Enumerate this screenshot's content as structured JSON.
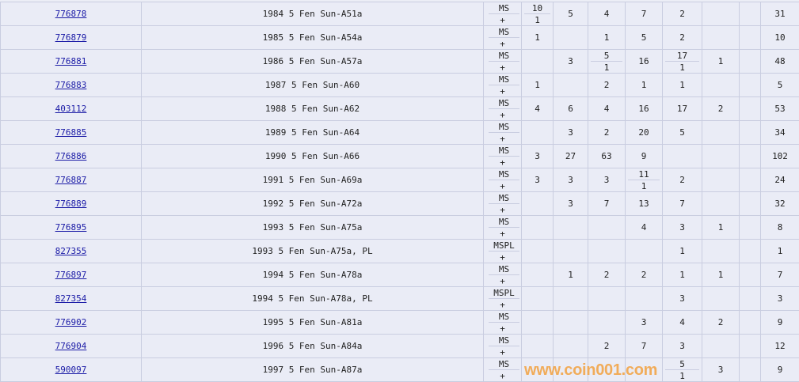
{
  "rows": [
    {
      "id": "776878",
      "desc": "1984 5 Fen Sun-A51a",
      "grade": [
        "MS",
        "+"
      ],
      "cells": [
        [
          "10",
          "1"
        ],
        "5",
        "4",
        "7",
        "2",
        "",
        "",
        "31"
      ]
    },
    {
      "id": "776879",
      "desc": "1985 5 Fen Sun-A54a",
      "grade": [
        "MS",
        "+"
      ],
      "cells": [
        "1",
        "",
        "1",
        "5",
        "2",
        "",
        "",
        "10"
      ]
    },
    {
      "id": "776881",
      "desc": "1986 5 Fen Sun-A57a",
      "grade": [
        "MS",
        "+"
      ],
      "cells": [
        "",
        "3",
        [
          "5",
          "1"
        ],
        "16",
        [
          "17",
          "1"
        ],
        "1",
        "",
        "48"
      ]
    },
    {
      "id": "776883",
      "desc": "1987 5 Fen Sun-A60",
      "grade": [
        "MS",
        "+"
      ],
      "cells": [
        "1",
        "",
        "2",
        "1",
        "1",
        "",
        "",
        "5"
      ]
    },
    {
      "id": "403112",
      "desc": "1988 5 Fen Sun-A62",
      "grade": [
        "MS",
        "+"
      ],
      "cells": [
        "4",
        "6",
        "4",
        "16",
        "17",
        "2",
        "",
        "53"
      ]
    },
    {
      "id": "776885",
      "desc": "1989 5 Fen Sun-A64",
      "grade": [
        "MS",
        "+"
      ],
      "cells": [
        "",
        "3",
        "2",
        "20",
        "5",
        "",
        "",
        "34"
      ]
    },
    {
      "id": "776886",
      "desc": "1990 5 Fen Sun-A66",
      "grade": [
        "MS",
        "+"
      ],
      "cells": [
        "3",
        "27",
        "63",
        "9",
        "",
        "",
        "",
        "102"
      ]
    },
    {
      "id": "776887",
      "desc": "1991 5 Fen Sun-A69a",
      "grade": [
        "MS",
        "+"
      ],
      "cells": [
        "3",
        "3",
        "3",
        [
          "11",
          "1"
        ],
        "2",
        "",
        "",
        "24"
      ]
    },
    {
      "id": "776889",
      "desc": "1992 5 Fen Sun-A72a",
      "grade": [
        "MS",
        "+"
      ],
      "cells": [
        "",
        "3",
        "7",
        "13",
        "7",
        "",
        "",
        "32"
      ]
    },
    {
      "id": "776895",
      "desc": "1993 5 Fen Sun-A75a",
      "grade": [
        "MS",
        "+"
      ],
      "cells": [
        "",
        "",
        "",
        "4",
        "3",
        "1",
        "",
        "8"
      ]
    },
    {
      "id": "827355",
      "desc": "1993 5 Fen Sun-A75a, PL",
      "grade": [
        "MSPL",
        "+"
      ],
      "cells": [
        "",
        "",
        "",
        "",
        "1",
        "",
        "",
        "1"
      ]
    },
    {
      "id": "776897",
      "desc": "1994 5 Fen Sun-A78a",
      "grade": [
        "MS",
        "+"
      ],
      "cells": [
        "",
        "1",
        "2",
        "2",
        "1",
        "1",
        "",
        "7"
      ]
    },
    {
      "id": "827354",
      "desc": "1994 5 Fen Sun-A78a, PL",
      "grade": [
        "MSPL",
        "+"
      ],
      "cells": [
        "",
        "",
        "",
        "",
        "3",
        "",
        "",
        "3"
      ]
    },
    {
      "id": "776902",
      "desc": "1995 5 Fen Sun-A81a",
      "grade": [
        "MS",
        "+"
      ],
      "cells": [
        "",
        "",
        "",
        "3",
        "4",
        "2",
        "",
        "9"
      ]
    },
    {
      "id": "776904",
      "desc": "1996 5 Fen Sun-A84a",
      "grade": [
        "MS",
        "+"
      ],
      "cells": [
        "",
        "",
        "2",
        "7",
        "3",
        "",
        "",
        "12"
      ]
    },
    {
      "id": "590097",
      "desc": "1997 5 Fen Sun-A87a",
      "grade": [
        "MS",
        "+"
      ],
      "cells": [
        "",
        "",
        "",
        "",
        [
          "5",
          "1"
        ],
        "3",
        "",
        "9"
      ]
    }
  ],
  "watermark": "www.coin001.com",
  "colors": {
    "link": "#1a1aa6",
    "background": "#eaecf6",
    "grid": "#c9cde0",
    "watermark": "#f2a64a"
  }
}
